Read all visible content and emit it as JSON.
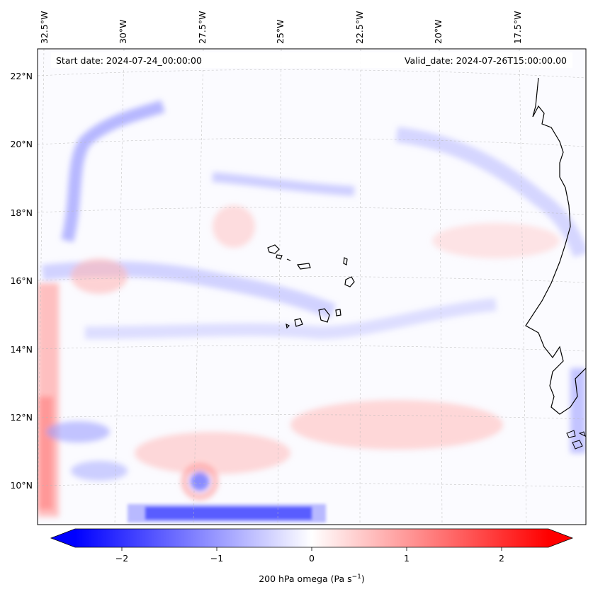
{
  "info": {
    "start_date": "Start date: 2024-07-24_00:00:00",
    "valid_date": "Valid_date: 2024-07-26T15:00:00.00"
  },
  "lon_labels": [
    "32.5°W",
    "30°W",
    "27.5°W",
    "25°W",
    "22.5°W",
    "20°W",
    "17.5°W"
  ],
  "lat_labels": [
    "22°N",
    "20°N",
    "18°N",
    "16°N",
    "14°N",
    "12°N",
    "10°N"
  ],
  "colorbar": {
    "ticks": [
      "−2",
      "−1",
      "0",
      "1",
      "2"
    ],
    "label": "200 hPa omega (Pa s",
    "label_sup": "−1",
    "label_end": ")",
    "colors": {
      "min": "#0000ff",
      "mid": "#ffffff",
      "max": "#ff0000"
    }
  }
}
